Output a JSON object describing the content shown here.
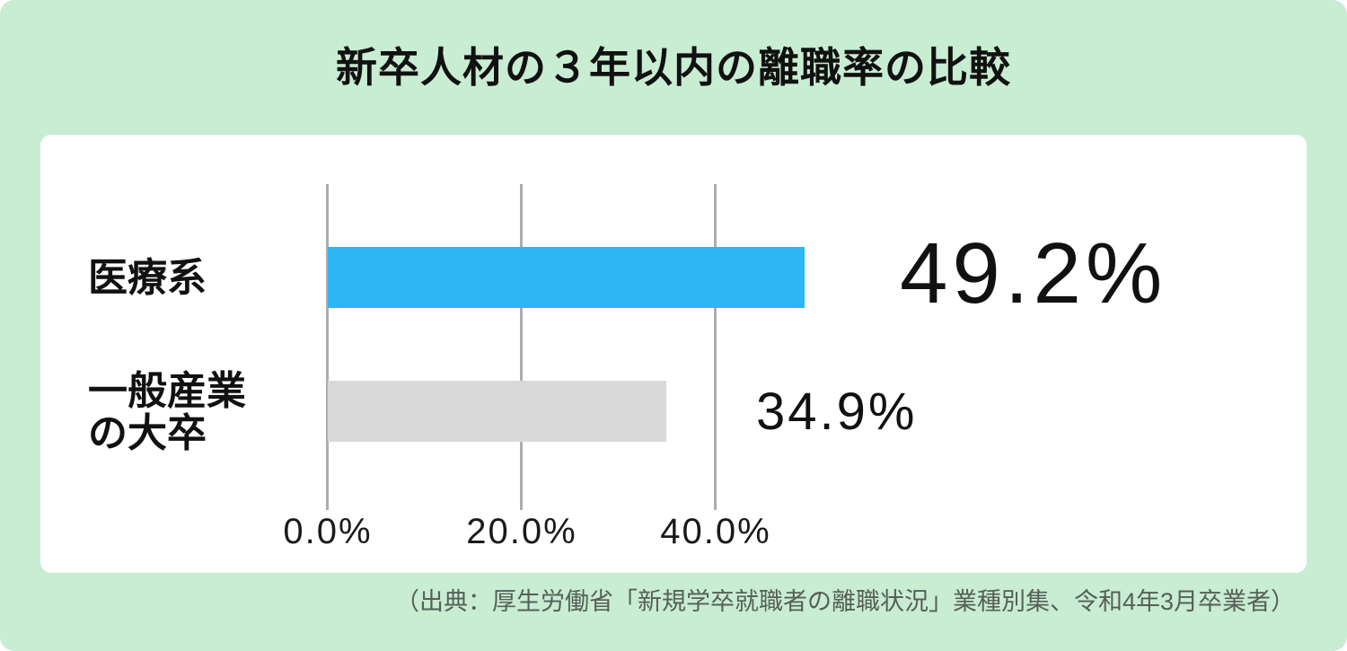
{
  "page": {
    "background_color": "#C8EDD2",
    "card_color": "#FFFFFF"
  },
  "chart_data": {
    "type": "bar",
    "orientation": "horizontal",
    "title": "新卒人材の３年以内の離職率の比較",
    "categories": [
      "医療系",
      "一般産業の大卒"
    ],
    "category_lines": [
      [
        "医療系"
      ],
      [
        "一般産業",
        "の大卒"
      ]
    ],
    "values": [
      49.2,
      34.9
    ],
    "value_labels": [
      "49.2%",
      "34.9%"
    ],
    "bar_colors": [
      "#2DB6F6",
      "#D9D9D9"
    ],
    "x_ticks": [
      0,
      20,
      40
    ],
    "x_tick_labels": [
      "0.0%",
      "20.0%",
      "40.0%"
    ],
    "xlim": [
      0,
      50.5
    ],
    "grid": true,
    "gridline_color": "#ADADAD",
    "legend": "none",
    "source": "（出典：厚生労働省「新規学卒就職者の離職状況」業種別集、令和4年3月卒業者）"
  }
}
